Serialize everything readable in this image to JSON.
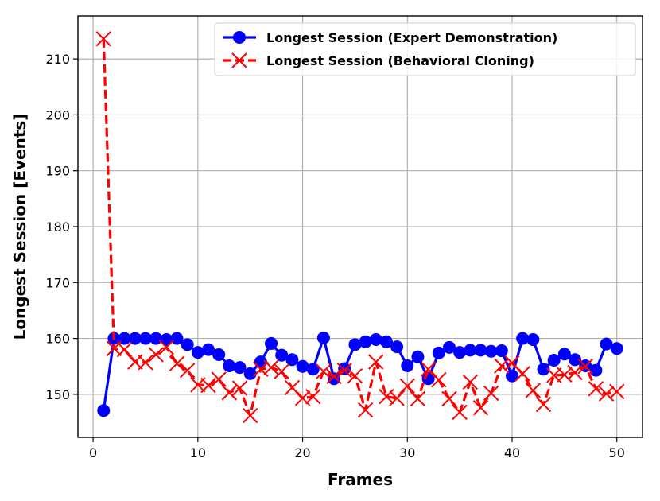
{
  "chart_data": {
    "type": "line",
    "title": "",
    "xlabel": "Frames",
    "ylabel": "Longest Session [Events]",
    "xlim": [
      -1.45,
      52.45
    ],
    "ylim": [
      142.3,
      217.7
    ],
    "xticks": [
      0,
      10,
      20,
      30,
      40,
      50
    ],
    "yticks": [
      150,
      160,
      170,
      180,
      190,
      200,
      210
    ],
    "xtick_labels": [
      "0",
      "10",
      "20",
      "30",
      "40",
      "50"
    ],
    "ytick_labels": [
      "150",
      "160",
      "170",
      "180",
      "190",
      "200",
      "210"
    ],
    "grid": true,
    "legend_position": "upper-right",
    "series": [
      {
        "name": "Longest Session (Expert Demonstration)",
        "color": "#0000ff",
        "line_style": "solid",
        "marker": "circle",
        "x": [
          1,
          2,
          3,
          4,
          5,
          6,
          7,
          8,
          9,
          10,
          11,
          12,
          13,
          14,
          15,
          16,
          17,
          18,
          19,
          20,
          21,
          22,
          23,
          24,
          25,
          26,
          27,
          28,
          29,
          30,
          31,
          32,
          33,
          34,
          35,
          36,
          37,
          38,
          39,
          40,
          41,
          42,
          43,
          44,
          45,
          46,
          47,
          48,
          49,
          50
        ],
        "values": [
          147.1,
          160.0,
          160.0,
          160.0,
          160.0,
          160.0,
          159.8,
          160.0,
          158.9,
          157.5,
          158.0,
          157.1,
          155.1,
          154.8,
          153.7,
          155.8,
          159.1,
          157.0,
          156.2,
          155.0,
          154.5,
          160.1,
          152.8,
          154.6,
          158.9,
          159.4,
          159.8,
          159.4,
          158.5,
          155.1,
          156.7,
          152.8,
          157.4,
          158.4,
          157.5,
          157.9,
          157.9,
          157.7,
          157.8,
          153.3,
          160.0,
          159.8,
          154.5,
          156.1,
          157.2,
          156.2,
          155.1,
          154.3,
          159.0,
          158.2
        ]
      },
      {
        "name": "Longest Session (Behavioral Cloning)",
        "color": "#ff0000",
        "line_style": "dashed",
        "marker": "x",
        "x": [
          1,
          2,
          3,
          4,
          5,
          6,
          7,
          8,
          9,
          10,
          11,
          12,
          13,
          14,
          15,
          16,
          17,
          18,
          19,
          20,
          21,
          22,
          23,
          24,
          25,
          26,
          27,
          28,
          29,
          30,
          31,
          32,
          33,
          34,
          35,
          36,
          37,
          38,
          39,
          40,
          41,
          42,
          43,
          44,
          45,
          46,
          47,
          48,
          49,
          50
        ],
        "values": [
          213.6,
          158.2,
          158.0,
          155.8,
          155.7,
          157.1,
          158.4,
          155.5,
          154.3,
          151.7,
          151.6,
          152.7,
          150.3,
          151.1,
          146.2,
          154.5,
          154.8,
          154.1,
          151.2,
          149.3,
          149.6,
          154.1,
          153.2,
          154.3,
          153.3,
          147.2,
          155.8,
          149.6,
          149.3,
          151.5,
          149.2,
          154.5,
          152.6,
          149.2,
          146.8,
          152.2,
          147.6,
          150.2,
          155.1,
          155.6,
          153.7,
          150.7,
          148.2,
          153.4,
          153.5,
          153.9,
          155.0,
          151.0,
          150.1,
          150.5
        ]
      }
    ]
  }
}
